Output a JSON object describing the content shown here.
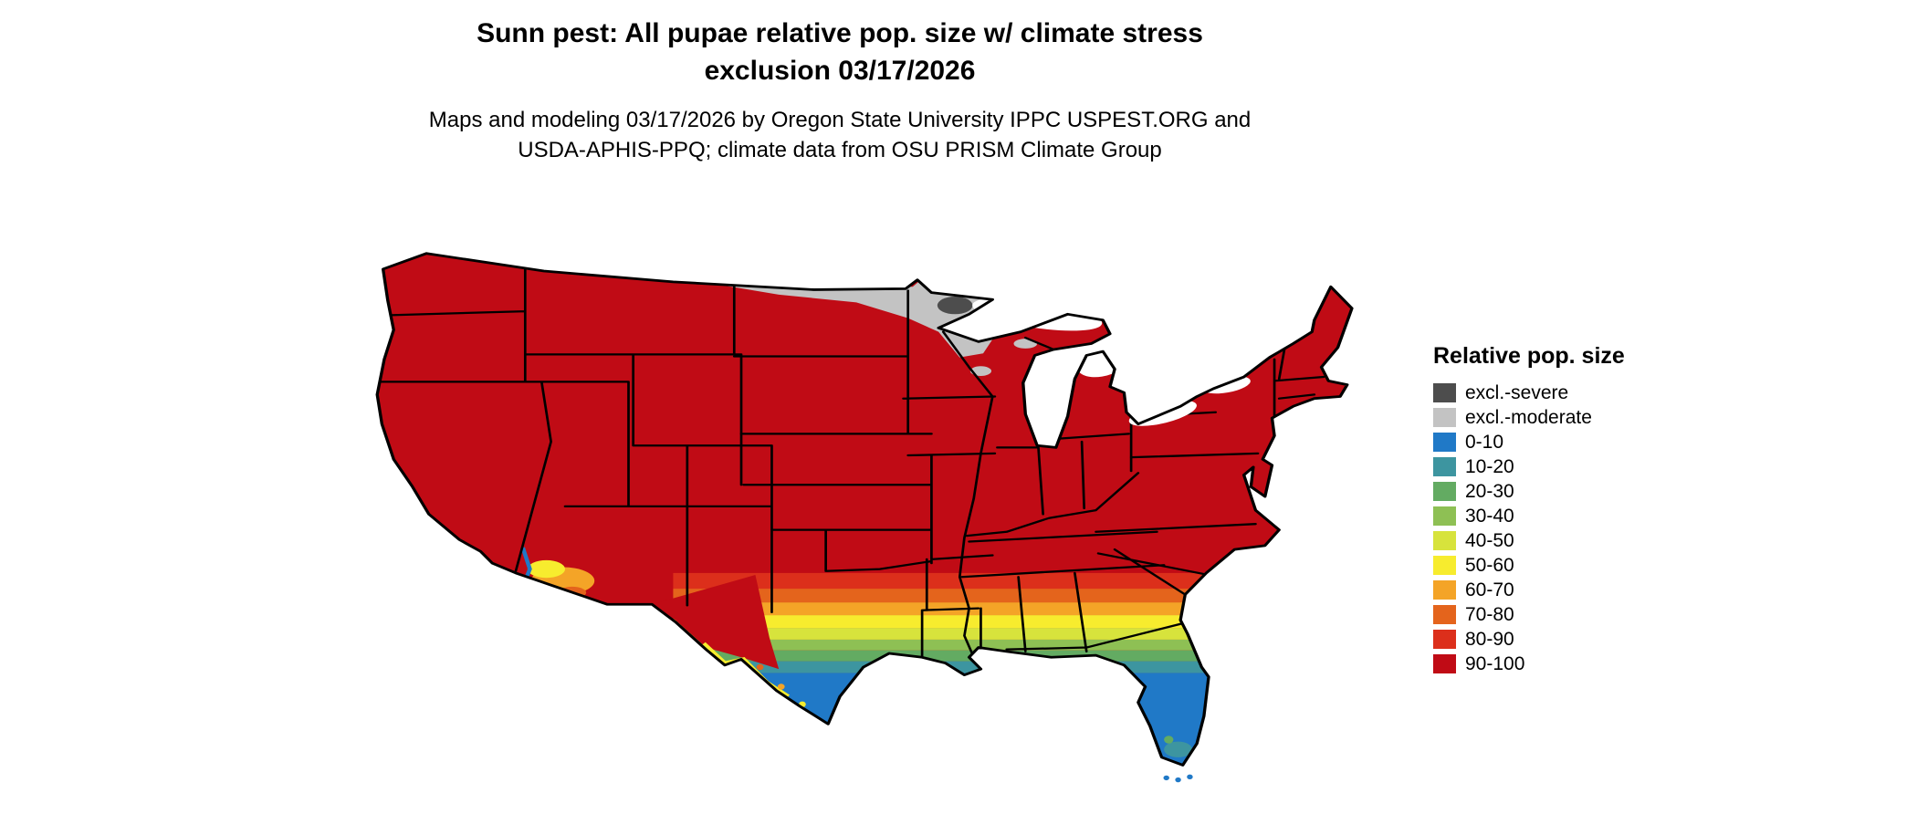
{
  "page": {
    "background": "#FFFFFF"
  },
  "header": {
    "title_line1": "Sunn pest: All pupae relative pop. size w/ climate stress",
    "title_line2": "exclusion 03/17/2026",
    "subtitle_line1": "Maps and modeling 03/17/2026 by Oregon State University IPPC USPEST.ORG and",
    "subtitle_line2": "USDA-APHIS-PPQ; climate data from OSU PRISM Climate Group"
  },
  "legend": {
    "title": "Relative pop. size",
    "entries": [
      {
        "label": "excl.-severe",
        "color": "#4D4D4D"
      },
      {
        "label": "excl.-moderate",
        "color": "#C3C3C3"
      },
      {
        "label": "0-10",
        "color": "#2079C7"
      },
      {
        "label": "10-20",
        "color": "#3D95A0"
      },
      {
        "label": "20-30",
        "color": "#63AB62"
      },
      {
        "label": "30-40",
        "color": "#8EC054"
      },
      {
        "label": "40-50",
        "color": "#D7E33C"
      },
      {
        "label": "50-60",
        "color": "#F7EC2E"
      },
      {
        "label": "60-70",
        "color": "#F4A427"
      },
      {
        "label": "70-80",
        "color": "#E4641C"
      },
      {
        "label": "80-90",
        "color": "#DC2F1B"
      },
      {
        "label": "90-100",
        "color": "#C00B15"
      }
    ]
  },
  "map": {
    "region": "Continental United States",
    "border_color": "#000000",
    "base_class": "90-100",
    "zones": [
      {
        "area": "Most of the continental U.S.",
        "class": "90-100"
      },
      {
        "area": "Northern Minnesota / northern Great Lakes fringe",
        "class": "excl.-moderate"
      },
      {
        "area": "Minnesota arrowhead core",
        "class": "excl.-severe"
      },
      {
        "area": "Central Texas through southern Mississippi, Alabama, Georgia and coastal South Carolina",
        "class": "80-90 to 20-30 gradient"
      },
      {
        "area": "South Texas, Gulf Coast and peninsular Florida",
        "class": "10-20 and 0-10"
      },
      {
        "area": "Southwestern Arizona / lower Colorado River patches",
        "class": "70-80 to 0-10 mix"
      },
      {
        "area": "Rio Grande corridor specks",
        "class": "50-60 to 70-80"
      }
    ]
  }
}
